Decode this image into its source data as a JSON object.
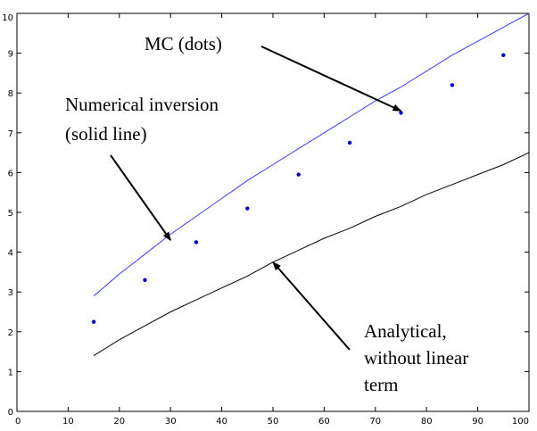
{
  "chart_data": {
    "type": "line",
    "title": "",
    "xlabel": "",
    "ylabel": "",
    "xlim": [
      0,
      100
    ],
    "ylim": [
      0,
      10
    ],
    "x_ticks": [
      "0",
      "10",
      "20",
      "30",
      "40",
      "50",
      "60",
      "70",
      "80",
      "90",
      "100"
    ],
    "y_ticks": [
      "0",
      "1",
      "2",
      "3",
      "4",
      "5",
      "6",
      "7",
      "8",
      "9",
      "10"
    ],
    "grid": false,
    "series": [
      {
        "style": "solid line",
        "color": "#3b3bff",
        "x": [
          15,
          20,
          25,
          30,
          35,
          40,
          45,
          50,
          55,
          60,
          65,
          70,
          75,
          80,
          85,
          90,
          95,
          100
        ],
        "values": [
          2.9,
          3.45,
          3.95,
          4.45,
          4.9,
          5.35,
          5.8,
          6.2,
          6.6,
          7.0,
          7.4,
          7.8,
          8.15,
          8.55,
          8.95,
          9.3,
          9.65,
          10.0
        ]
      },
      {
        "style": "dots",
        "color": "#0000cc",
        "x": [
          15,
          25,
          35,
          45,
          55,
          65,
          75,
          85,
          95
        ],
        "values": [
          2.25,
          3.3,
          4.25,
          5.1,
          5.95,
          6.75,
          7.5,
          8.2,
          8.95
        ]
      },
      {
        "style": "solid line",
        "color": "#000000",
        "x": [
          15,
          20,
          25,
          30,
          35,
          40,
          45,
          50,
          55,
          60,
          65,
          70,
          75,
          80,
          85,
          90,
          95,
          100
        ],
        "values": [
          1.4,
          1.8,
          2.15,
          2.5,
          2.8,
          3.1,
          3.4,
          3.75,
          4.05,
          4.35,
          4.6,
          4.9,
          5.15,
          5.45,
          5.7,
          5.95,
          6.2,
          6.5
        ]
      }
    ],
    "annotations": [
      {
        "id": "mc",
        "lines": [
          "MC (dots)"
        ],
        "arrow_to": [
          75,
          7.55
        ]
      },
      {
        "id": "numerical",
        "lines": [
          "Numerical inversion",
          "(solid line)"
        ],
        "arrow_to": [
          30,
          4.3
        ]
      },
      {
        "id": "analytical",
        "lines": [
          "Analytical,",
          "without linear",
          "term"
        ],
        "arrow_to": [
          50,
          3.75
        ]
      }
    ]
  }
}
